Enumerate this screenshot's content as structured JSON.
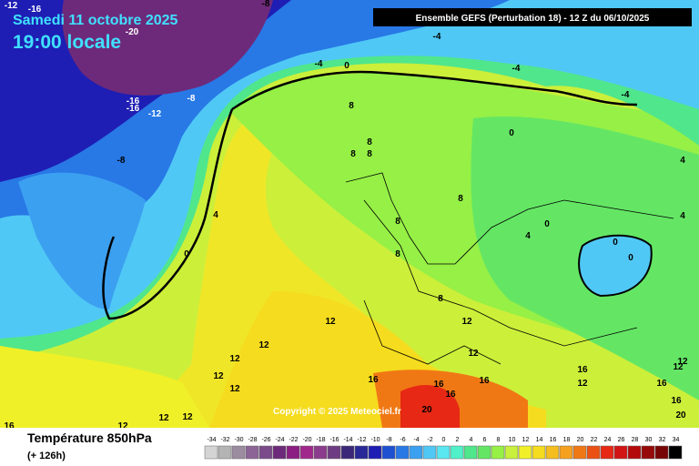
{
  "header": {
    "date": "Samedi 11 octobre 2025",
    "time": "19:00 locale",
    "model": "Ensemble GEFS  (Perturbation 18)  -  12 Z du 06/10/2025"
  },
  "copyright": "Copyright © 2025 Meteociel.fr",
  "footer": {
    "title": "Température 850hPa",
    "lead": "(+ 126h)"
  },
  "scale": {
    "labels": [
      -34,
      -32,
      -30,
      -28,
      -26,
      -24,
      -22,
      -20,
      -18,
      -16,
      -14,
      -12,
      -10,
      -8,
      -6,
      -4,
      -2,
      0,
      2,
      4,
      6,
      8,
      10,
      12,
      14,
      16,
      18,
      20,
      22,
      24,
      26,
      28,
      30,
      32,
      34
    ],
    "colors": [
      "#d4d4d4",
      "#b4b4b4",
      "#9c8ca0",
      "#8c6496",
      "#7a4a8a",
      "#6e2a7a",
      "#8a1e82",
      "#a0288c",
      "#8c3c8c",
      "#6e3c82",
      "#3c2878",
      "#282896",
      "#1e1eb4",
      "#1e50d2",
      "#2878e6",
      "#3ca0f0",
      "#50c8f5",
      "#5ae6f0",
      "#50f0c8",
      "#50e68c",
      "#64e664",
      "#96f046",
      "#c8f03c",
      "#f0f028",
      "#f5dc1e",
      "#f5be1e",
      "#f5a01e",
      "#f07814",
      "#eb5014",
      "#e62814",
      "#d21414",
      "#b40a0a",
      "#960a0a",
      "#780505",
      "#000000"
    ]
  },
  "contour_labels": [
    "-12",
    "-16",
    "-8",
    "-20",
    "-4",
    "-16",
    "-16",
    "-12",
    "-8",
    "-8",
    "-4",
    "0",
    "-4",
    "-4",
    "8",
    "8",
    "8",
    "8",
    "0",
    "4",
    "0",
    "4",
    "0",
    "0",
    "0",
    "4",
    "4",
    "8",
    "8",
    "8",
    "8",
    "12",
    "12",
    "12",
    "12",
    "12",
    "12",
    "12",
    "12",
    "12",
    "12",
    "16",
    "16",
    "16",
    "20",
    "16",
    "20",
    "12",
    "16",
    "16",
    "12",
    "16",
    "16",
    "12"
  ]
}
